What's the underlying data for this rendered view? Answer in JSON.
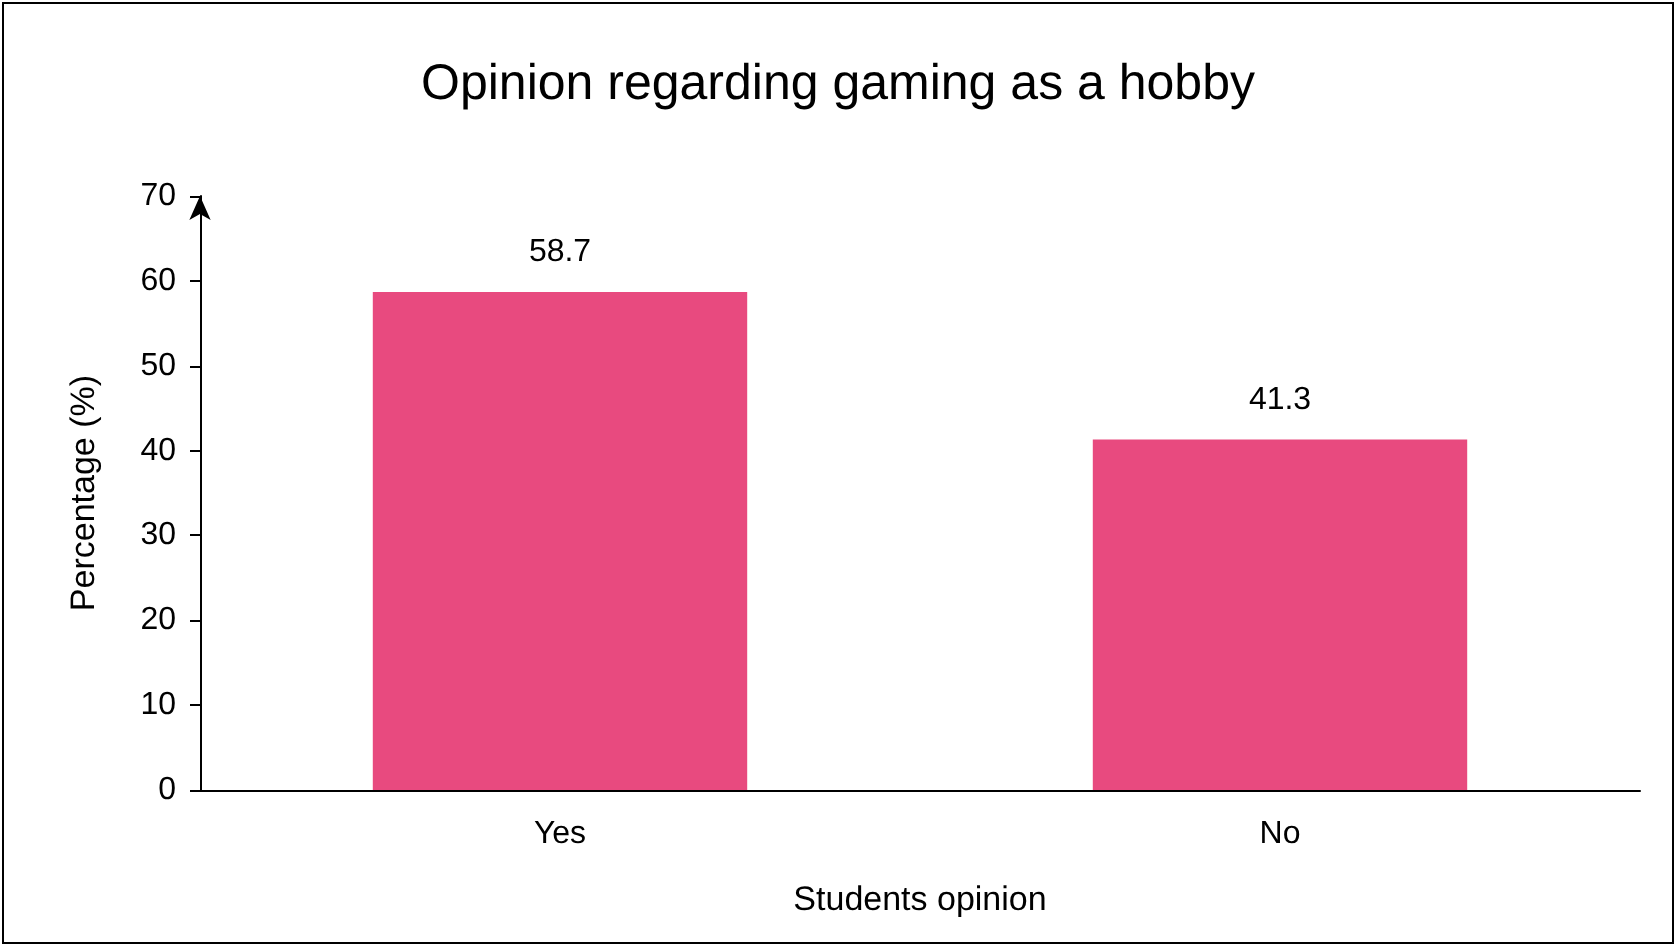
{
  "chart_data": {
    "type": "bar",
    "title": "Opinion regarding gaming as a hobby",
    "xlabel": "Students opinion",
    "ylabel": "Percentage (%)",
    "categories": [
      "Yes",
      "No"
    ],
    "values": [
      58.7,
      41.3
    ],
    "color": "#e84a7f",
    "ylim": [
      0,
      70
    ],
    "yticks": [
      0,
      10,
      20,
      30,
      40,
      50,
      60,
      70
    ],
    "grid": false,
    "data_labels": true
  }
}
